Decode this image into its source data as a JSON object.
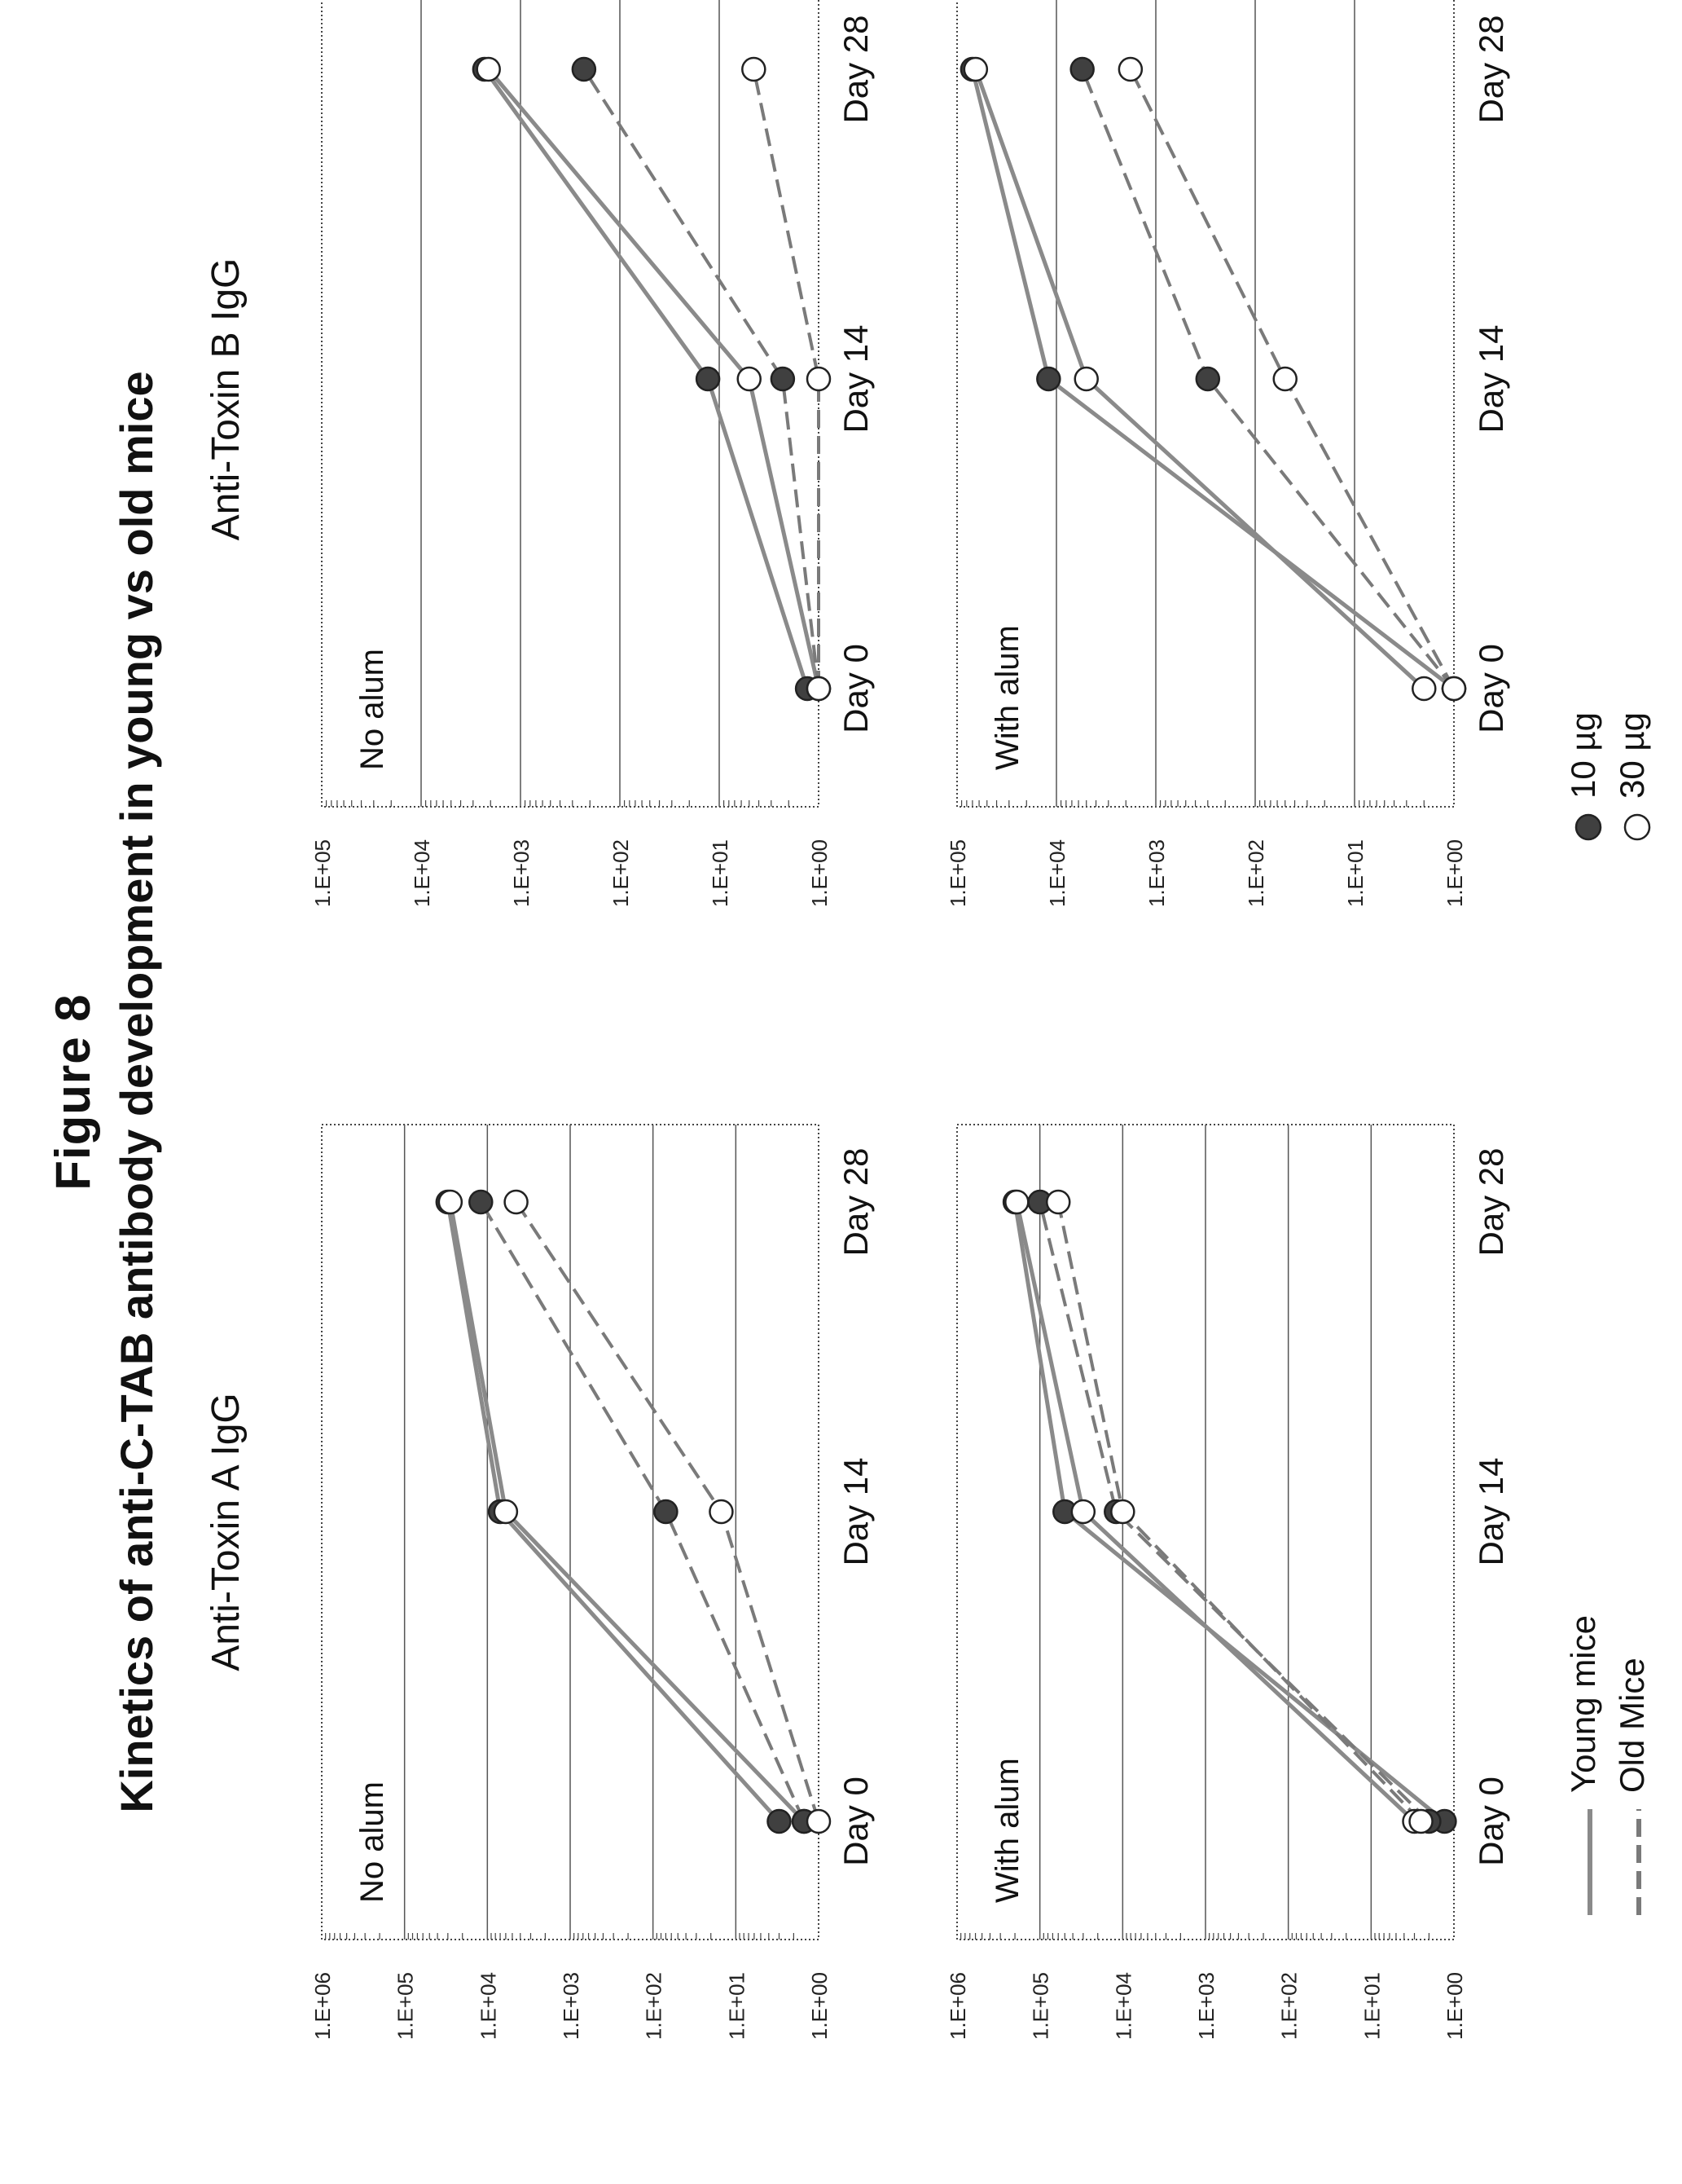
{
  "figure": {
    "title": "Figure 8",
    "subtitle": "Kinetics of anti-C-TAB antibody development in young vs old mice"
  },
  "columns": [
    {
      "title": "Anti-Toxin A IgG"
    },
    {
      "title": "Anti-Toxin B IgG"
    }
  ],
  "legend": {
    "lines": [
      {
        "label": "Young mice",
        "style": "solid"
      },
      {
        "label": "Old Mice",
        "style": "dashed"
      }
    ],
    "markers": [
      {
        "label": "10 µg",
        "fill": "#404040"
      },
      {
        "label": "30 µg",
        "fill": "#ffffff"
      }
    ]
  },
  "colors": {
    "solid_line": "#8a8a8a",
    "dashed_line": "#7a7a7a",
    "filled_marker": "#404040",
    "open_marker": "#ffffff",
    "gridline": "#555555"
  },
  "chart_data": [
    {
      "type": "line",
      "annotation": "No alum",
      "title": "",
      "categories": [
        "Day 0",
        "Day 14",
        "Day 28"
      ],
      "y_scale": "log",
      "yticks": [
        "1.E+00",
        "1.E+01",
        "1.E+02",
        "1.E+03",
        "1.E+04",
        "1.E+05",
        "1.E+06"
      ],
      "ylim": [
        1,
        1000000
      ],
      "grid": true,
      "series": [
        {
          "line": "solid",
          "marker": "filled",
          "values": [
            3,
            7000,
            30000
          ]
        },
        {
          "line": "solid",
          "marker": "open",
          "values": [
            1.5,
            6000,
            28000
          ]
        },
        {
          "line": "dashed",
          "marker": "filled",
          "values": [
            1.5,
            70,
            12000
          ]
        },
        {
          "line": "dashed",
          "marker": "open",
          "values": [
            1,
            15,
            4500
          ]
        }
      ]
    },
    {
      "type": "line",
      "annotation": "No alum",
      "title": "",
      "categories": [
        "Day 0",
        "Day 14",
        "Day 28"
      ],
      "y_scale": "log",
      "yticks": [
        "1.E+00",
        "1.E+01",
        "1.E+02",
        "1.E+03",
        "1.E+04",
        "1.E+05"
      ],
      "ylim": [
        1,
        100000
      ],
      "grid": true,
      "series": [
        {
          "line": "solid",
          "marker": "filled",
          "values": [
            1.3,
            13,
            2300
          ]
        },
        {
          "line": "solid",
          "marker": "open",
          "values": [
            1,
            5,
            2100
          ]
        },
        {
          "line": "dashed",
          "marker": "filled",
          "values": [
            1,
            2.3,
            230
          ]
        },
        {
          "line": "dashed",
          "marker": "open",
          "values": [
            1,
            1,
            4.5
          ]
        }
      ]
    },
    {
      "type": "line",
      "annotation": "With alum",
      "title": "",
      "categories": [
        "Day 0",
        "Day 14",
        "Day 28"
      ],
      "y_scale": "log",
      "yticks": [
        "1.E+00",
        "1.E+01",
        "1.E+02",
        "1.E+03",
        "1.E+04",
        "1.E+05",
        "1.E+06"
      ],
      "ylim": [
        1,
        1000000
      ],
      "grid": true,
      "series": [
        {
          "line": "solid",
          "marker": "filled",
          "values": [
            1.3,
            50000,
            200000
          ]
        },
        {
          "line": "solid",
          "marker": "open",
          "values": [
            3,
            30000,
            190000
          ]
        },
        {
          "line": "dashed",
          "marker": "filled",
          "values": [
            2,
            12000,
            100000
          ]
        },
        {
          "line": "dashed",
          "marker": "open",
          "values": [
            2.5,
            10000,
            60000
          ]
        }
      ]
    },
    {
      "type": "line",
      "annotation": "With alum",
      "title": "",
      "categories": [
        "Day 0",
        "Day 14",
        "Day 28"
      ],
      "y_scale": "log",
      "yticks": [
        "1.E+00",
        "1.E+01",
        "1.E+02",
        "1.E+03",
        "1.E+04",
        "1.E+05"
      ],
      "ylim": [
        1,
        100000
      ],
      "grid": true,
      "series": [
        {
          "line": "solid",
          "marker": "filled",
          "values": [
            1,
            12000,
            70000
          ]
        },
        {
          "line": "solid",
          "marker": "open",
          "values": [
            2,
            5000,
            65000
          ]
        },
        {
          "line": "dashed",
          "marker": "filled",
          "values": [
            1,
            300,
            5500
          ]
        },
        {
          "line": "dashed",
          "marker": "open",
          "values": [
            1,
            50,
            1800
          ]
        }
      ]
    }
  ]
}
